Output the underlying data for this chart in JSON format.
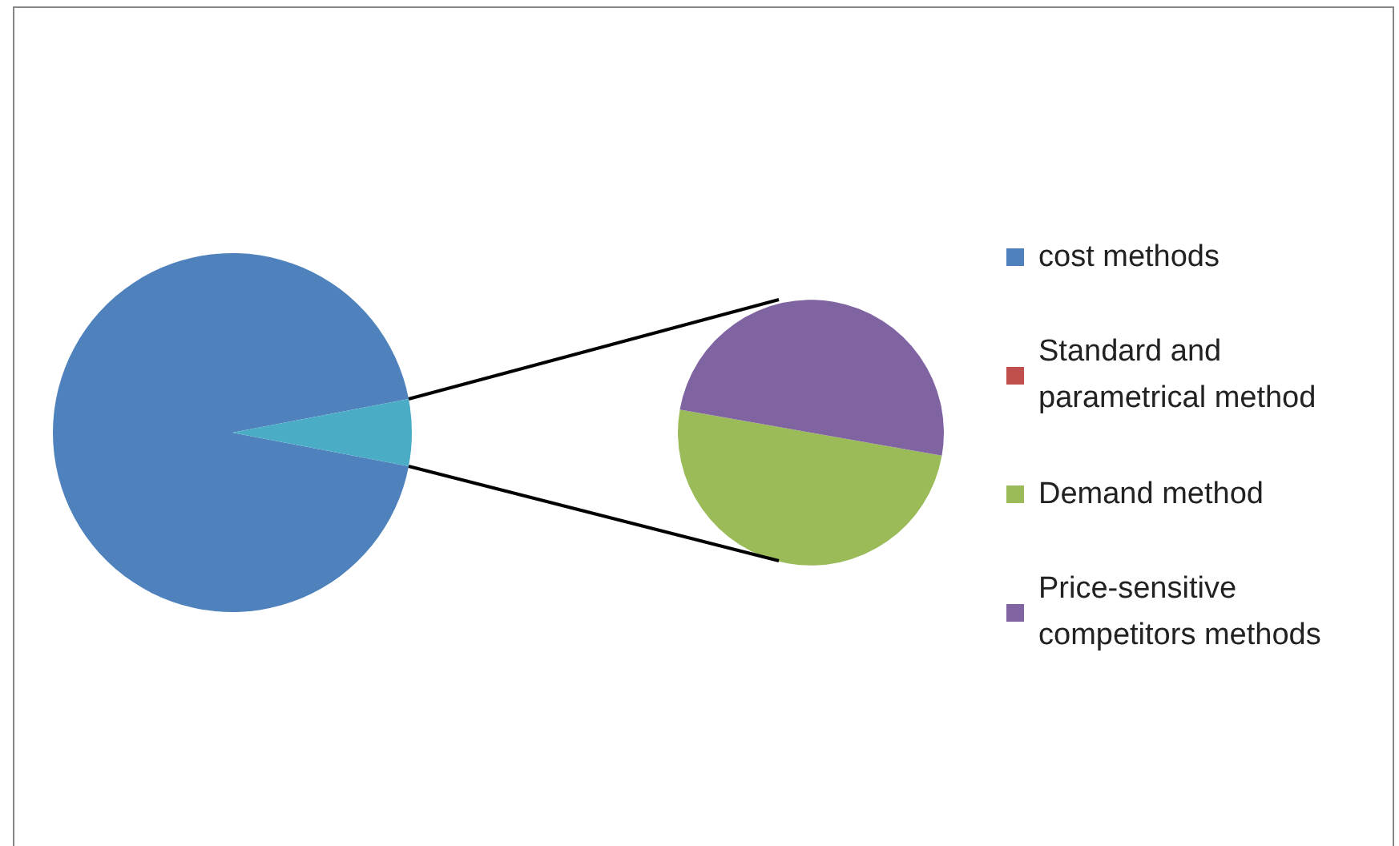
{
  "chart_data": [
    {
      "type": "pie",
      "categories": [
        "cost methods",
        null
      ],
      "values": [
        94,
        6
      ],
      "colors": [
        "#4f81bd",
        "#4bacc6"
      ],
      "legend": "right"
    },
    {
      "type": "pie",
      "categories": [
        "Standard and parametrical method",
        "Demand method",
        "Price-sensitive competitors methods"
      ],
      "values": [
        0,
        50,
        50
      ],
      "colors": [
        "#c0504d",
        "#9bbb59",
        "#8064a2"
      ],
      "legend": "right"
    }
  ]
}
